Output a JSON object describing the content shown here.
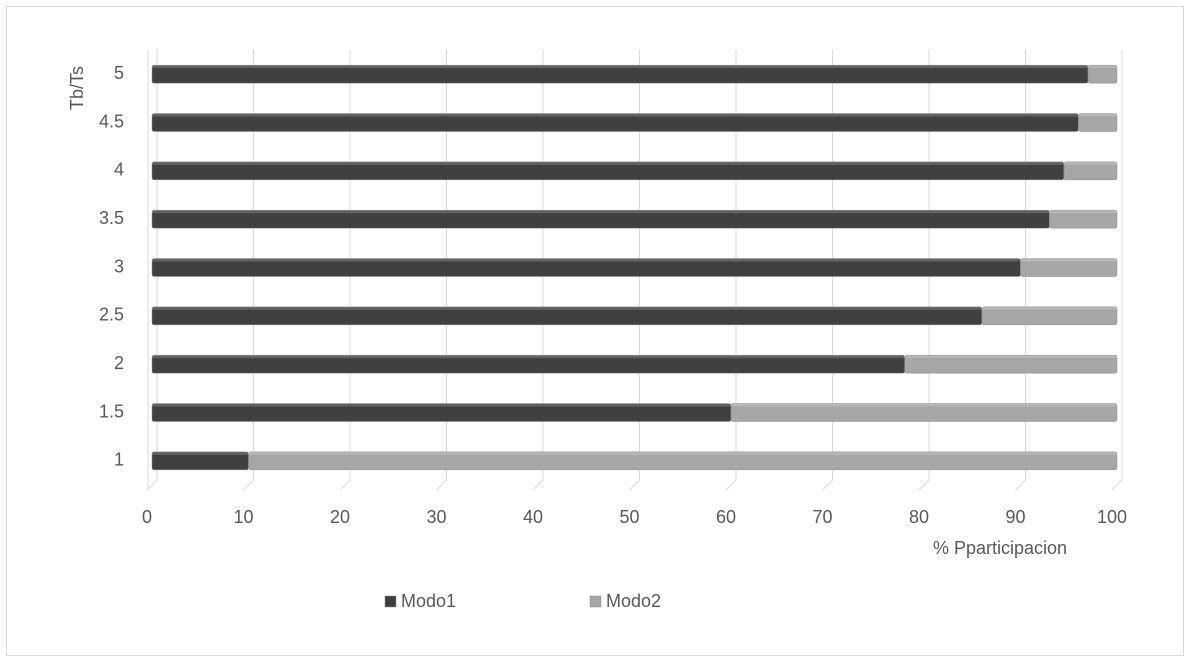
{
  "chart_data": {
    "type": "stacked-bar-horizontal",
    "y_label": "Tb/Ts",
    "x_label": "% Pparticipacion",
    "categories": [
      "1",
      "1.5",
      "2",
      "2.5",
      "3",
      "3.5",
      "4",
      "4.5",
      "5"
    ],
    "series": [
      {
        "name": "Modo1",
        "color": "#404040",
        "values": [
          10,
          60,
          78,
          86,
          90,
          93,
          94.5,
          96,
          97
        ]
      },
      {
        "name": "Modo2",
        "color": "#a6a6a6",
        "values": [
          90,
          40,
          22,
          14,
          10,
          7,
          5.5,
          4,
          3
        ]
      }
    ],
    "xlim": [
      0,
      100
    ],
    "xticks": [
      0,
      10,
      20,
      30,
      40,
      50,
      60,
      70,
      80,
      90,
      100
    ],
    "grid": true
  }
}
